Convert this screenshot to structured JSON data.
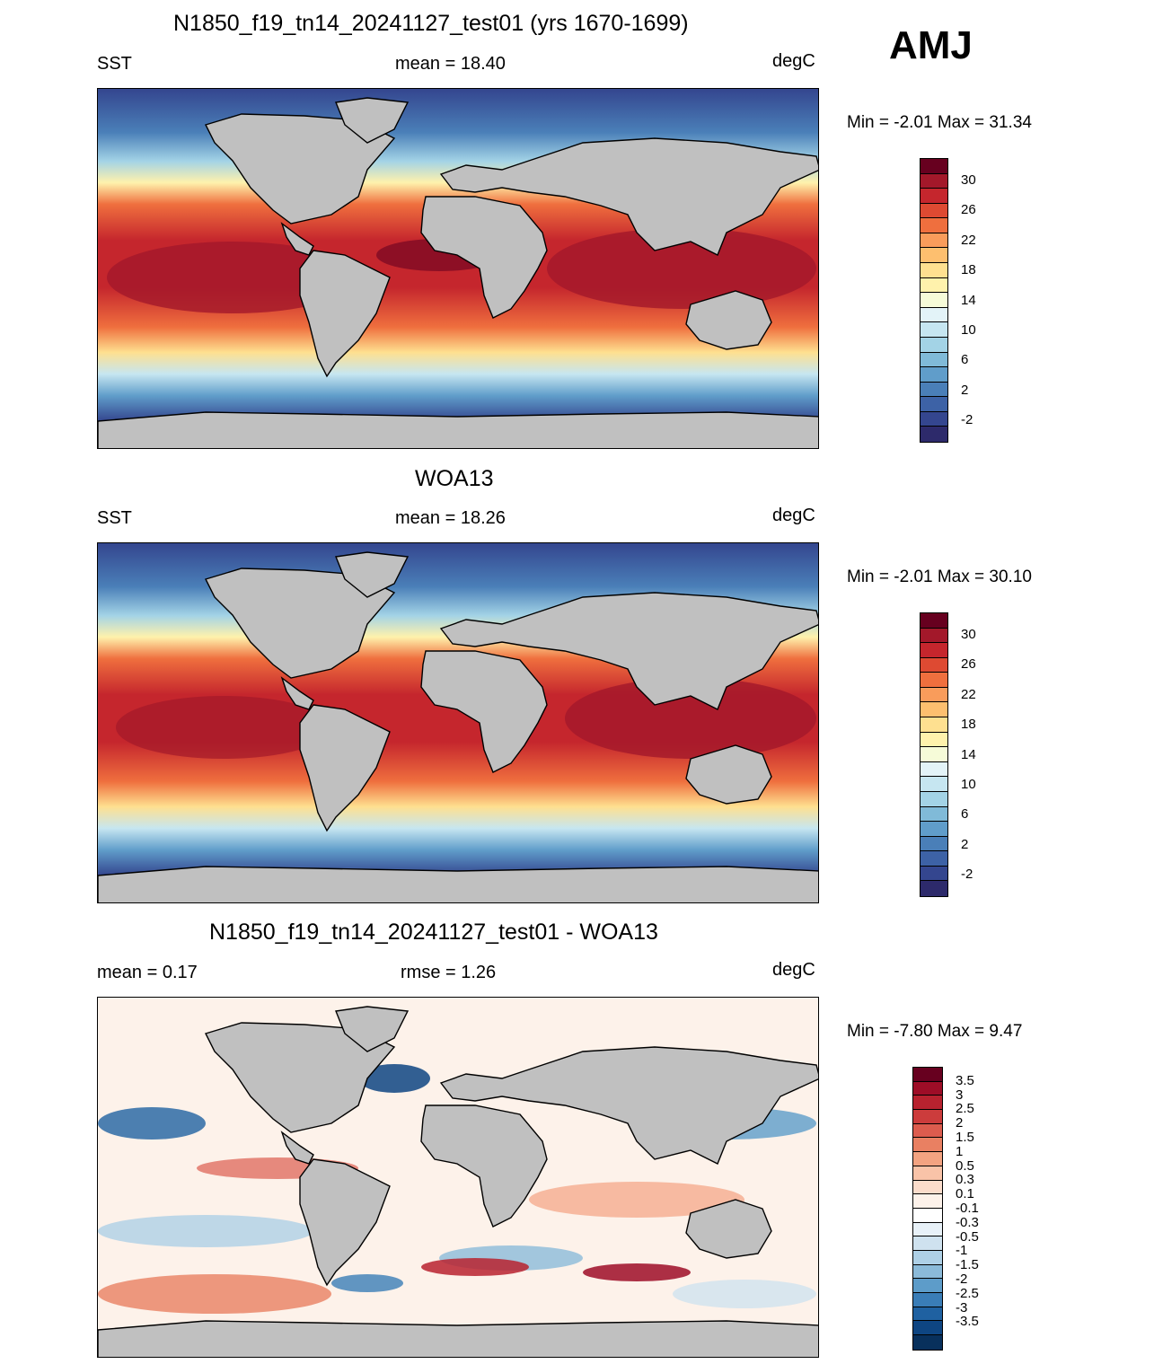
{
  "season": "AMJ",
  "panels": [
    {
      "id": "model",
      "title": "N1850_f19_tn14_20241127_test01 (yrs 1670-1699)",
      "left_label": "SST",
      "center_label": "mean =  18.40",
      "right_label": "degC",
      "minmax": "Min =  -2.01 Max =  31.34"
    },
    {
      "id": "obs",
      "title": "WOA13",
      "left_label": "SST",
      "center_label": "mean =  18.26",
      "right_label": "degC",
      "minmax": "Min =  -2.01 Max =  30.10"
    },
    {
      "id": "diff",
      "title": "N1850_f19_tn14_20241127_test01 - WOA13",
      "left_label": "mean =   0.17",
      "center_label": "rmse =   1.26",
      "right_label": "degC",
      "minmax": "Min =  -7.80 Max =   9.47"
    }
  ],
  "colorbar_abs": {
    "labels": [
      "30",
      "26",
      "22",
      "18",
      "14",
      "10",
      "6",
      "2",
      "-2"
    ],
    "colors": [
      "#67001f",
      "#a3182a",
      "#c5262d",
      "#de4a32",
      "#ef6f3e",
      "#f99c5b",
      "#fdbf6f",
      "#fee090",
      "#fff2ac",
      "#f6fbd8",
      "#e3f3f8",
      "#c6e6f1",
      "#a3d3e6",
      "#80bad8",
      "#609dca",
      "#4a7fb8",
      "#3d62a6",
      "#34468f",
      "#2d2a6b"
    ]
  },
  "colorbar_diff": {
    "labels": [
      "3.5",
      "3",
      "2.5",
      "2",
      "1.5",
      "1",
      "0.5",
      "0.3",
      "0.1",
      "-0.1",
      "-0.3",
      "-0.5",
      "-1",
      "-1.5",
      "-2",
      "-2.5",
      "-3",
      "-3.5"
    ],
    "colors": [
      "#67001f",
      "#9e0d27",
      "#b8222f",
      "#cc3c3c",
      "#dc5c4e",
      "#e98062",
      "#f3a381",
      "#f9c3a8",
      "#fbdccb",
      "#fdf2ea",
      "#ffffff",
      "#e8f1f8",
      "#cfe2ef",
      "#aed0e6",
      "#8bbad9",
      "#5d9cc9",
      "#3a7db7",
      "#1f61a1",
      "#0e4582",
      "#08305c"
    ]
  },
  "map_colors": {
    "land": "#c0c0c0",
    "coast": "#000000"
  }
}
